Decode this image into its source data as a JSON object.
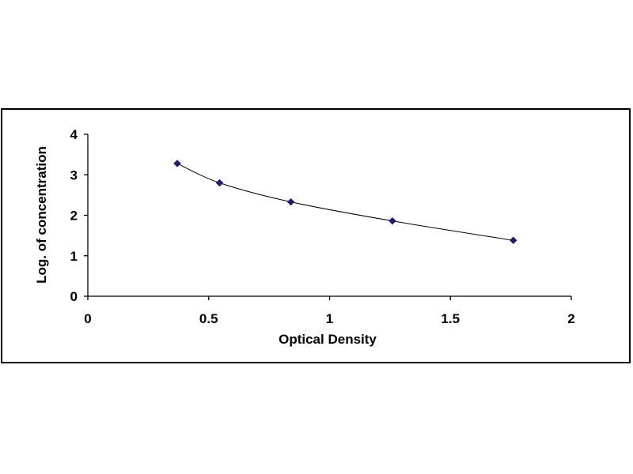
{
  "chart_data": {
    "type": "scatter",
    "title": "",
    "xlabel": "Optical Density",
    "ylabel": "Log. of concentration",
    "xlim": [
      0,
      2
    ],
    "ylim": [
      0,
      4
    ],
    "x_ticks": [
      "0",
      "0.5",
      "1",
      "1.5",
      "2"
    ],
    "y_ticks": [
      "0",
      "1",
      "2",
      "3",
      "4"
    ],
    "grid": false,
    "legend": "none",
    "marker_color": "#1f1f6b",
    "line_color": "#000000",
    "series": [
      {
        "x": [
          0.37,
          0.545,
          0.84,
          1.26,
          1.76
        ],
        "y": [
          3.28,
          2.8,
          2.33,
          1.86,
          1.38
        ]
      }
    ]
  }
}
